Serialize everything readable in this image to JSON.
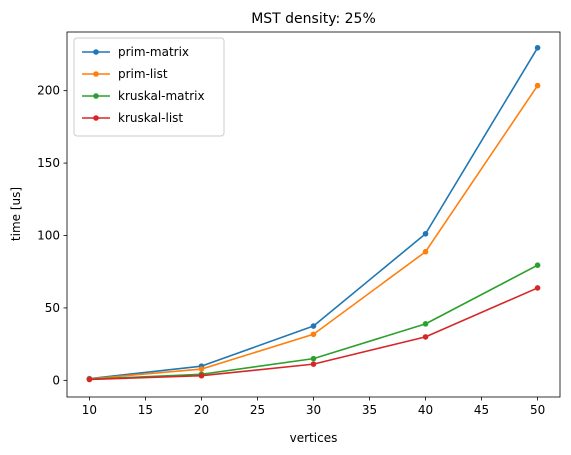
{
  "chart_data": {
    "type": "line",
    "title": "MST density: 25%",
    "xlabel": "vertices",
    "ylabel": "time [us]",
    "x": [
      10,
      20,
      30,
      40,
      50
    ],
    "xlim": [
      8,
      52
    ],
    "ylim": [
      -11.5,
      240.5
    ],
    "xticks": [
      10,
      15,
      20,
      25,
      30,
      35,
      40,
      45,
      50
    ],
    "yticks": [
      0,
      50,
      100,
      150,
      200
    ],
    "grid": false,
    "legend_position": "top-left",
    "series": [
      {
        "name": "prim-matrix",
        "color": "#1f77b4",
        "values": [
          1.2,
          9.8,
          37.5,
          101.2,
          229.6
        ]
      },
      {
        "name": "prim-list",
        "color": "#ff7f0e",
        "values": [
          1.0,
          7.8,
          31.8,
          88.8,
          203.5
        ]
      },
      {
        "name": "kruskal-matrix",
        "color": "#2ca02c",
        "values": [
          0.8,
          4.2,
          15.0,
          39.0,
          79.5
        ]
      },
      {
        "name": "kruskal-list",
        "color": "#d62728",
        "values": [
          0.6,
          3.2,
          11.2,
          30.0,
          63.8
        ]
      }
    ]
  }
}
